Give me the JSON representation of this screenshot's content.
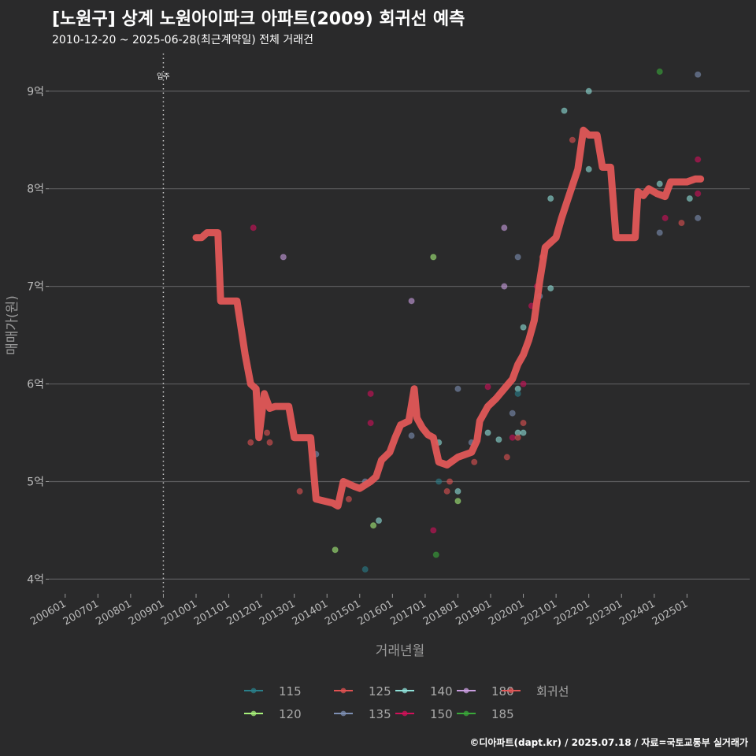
{
  "title": "[노원구] 상계 노원아이파크 아파트(2009) 회귀선 예측",
  "subtitle": "2010-12-20 ~ 2025-06-28(최근계약일) 전체 거래건",
  "caption": "©디아파트(dapt.kr) / 2025.07.18 / 자료=국토교통부 실거래가",
  "chart_data": {
    "type": "scatter",
    "xlabel": "거래년월",
    "ylabel": "매매가(원)",
    "xlim": [
      "2005-07",
      "2026-12"
    ],
    "ylim": [
      3.85,
      9.45
    ],
    "yticks": [
      4,
      5,
      6,
      7,
      8,
      9
    ],
    "ytick_labels": [
      "4억",
      "5억",
      "6억",
      "7억",
      "8억",
      "9억"
    ],
    "xtick_labels": [
      "200601",
      "200701",
      "200801",
      "200901",
      "201001",
      "201101",
      "201201",
      "201301",
      "201401",
      "201501",
      "201601",
      "201701",
      "201801",
      "201901",
      "202001",
      "202101",
      "202201",
      "202301",
      "202401",
      "202501"
    ],
    "annotation": {
      "label": "입주",
      "x": "2009-01"
    },
    "legend_position": "bottom",
    "colors": {
      "115": "#2a7f8a",
      "120": "#a7f07a",
      "125": "#e05252",
      "135": "#7d8fb3",
      "140": "#8fe0d8",
      "150": "#d1105a",
      "180": "#c99ee0",
      "185": "#3aa83a",
      "회귀선": "#e05757"
    },
    "legend": [
      "115",
      "120",
      "125",
      "135",
      "140",
      "150",
      "180",
      "185",
      "회귀선"
    ],
    "regression": [
      [
        "2010-01",
        7.5
      ],
      [
        "2010-03",
        7.5
      ],
      [
        "2010-05",
        7.55
      ],
      [
        "2010-09",
        7.55
      ],
      [
        "2010-10",
        6.85
      ],
      [
        "2011-04",
        6.85
      ],
      [
        "2011-07",
        6.3
      ],
      [
        "2011-09",
        6.0
      ],
      [
        "2011-11",
        5.95
      ],
      [
        "2011-12",
        5.45
      ],
      [
        "2012-02",
        5.9
      ],
      [
        "2012-04",
        5.75
      ],
      [
        "2012-06",
        5.77
      ],
      [
        "2012-11",
        5.77
      ],
      [
        "2013-01",
        5.45
      ],
      [
        "2013-07",
        5.45
      ],
      [
        "2013-09",
        4.82
      ],
      [
        "2014-03",
        4.78
      ],
      [
        "2014-05",
        4.75
      ],
      [
        "2014-07",
        5.0
      ],
      [
        "2014-11",
        4.95
      ],
      [
        "2015-01",
        4.93
      ],
      [
        "2015-05",
        5.0
      ],
      [
        "2015-07",
        5.05
      ],
      [
        "2015-09",
        5.22
      ],
      [
        "2015-12",
        5.3
      ],
      [
        "2016-02",
        5.45
      ],
      [
        "2016-04",
        5.58
      ],
      [
        "2016-07",
        5.62
      ],
      [
        "2016-09",
        5.95
      ],
      [
        "2016-10",
        5.65
      ],
      [
        "2016-12",
        5.55
      ],
      [
        "2017-02",
        5.48
      ],
      [
        "2017-04",
        5.45
      ],
      [
        "2017-06",
        5.2
      ],
      [
        "2017-09",
        5.17
      ],
      [
        "2018-01",
        5.25
      ],
      [
        "2018-06",
        5.3
      ],
      [
        "2018-08",
        5.42
      ],
      [
        "2018-09",
        5.62
      ],
      [
        "2018-12",
        5.77
      ],
      [
        "2019-03",
        5.85
      ],
      [
        "2019-06",
        5.95
      ],
      [
        "2019-09",
        6.05
      ],
      [
        "2019-11",
        6.2
      ],
      [
        "2020-01",
        6.3
      ],
      [
        "2020-03",
        6.45
      ],
      [
        "2020-05",
        6.65
      ],
      [
        "2020-07",
        7.05
      ],
      [
        "2020-09",
        7.4
      ],
      [
        "2020-11",
        7.45
      ],
      [
        "2021-01",
        7.5
      ],
      [
        "2021-03",
        7.7
      ],
      [
        "2021-06",
        7.95
      ],
      [
        "2021-09",
        8.2
      ],
      [
        "2021-11",
        8.6
      ],
      [
        "2022-01",
        8.55
      ],
      [
        "2022-04",
        8.55
      ],
      [
        "2022-06",
        8.22
      ],
      [
        "2022-09",
        8.22
      ],
      [
        "2022-11",
        7.5
      ],
      [
        "2023-03",
        7.5
      ],
      [
        "2023-06",
        7.5
      ],
      [
        "2023-07",
        7.97
      ],
      [
        "2023-09",
        7.93
      ],
      [
        "2023-11",
        8.0
      ],
      [
        "2024-02",
        7.95
      ],
      [
        "2024-05",
        7.92
      ],
      [
        "2024-07",
        8.07
      ],
      [
        "2025-01",
        8.07
      ],
      [
        "2025-04",
        8.1
      ],
      [
        "2025-06",
        8.1
      ]
    ],
    "points": [
      {
        "x": "2011-10",
        "y": 7.6,
        "s": "150"
      },
      {
        "x": "2011-09",
        "y": 5.4,
        "s": "125"
      },
      {
        "x": "2012-03",
        "y": 5.5,
        "s": "125"
      },
      {
        "x": "2012-04",
        "y": 5.4,
        "s": "125"
      },
      {
        "x": "2012-09",
        "y": 7.3,
        "s": "180"
      },
      {
        "x": "2013-03",
        "y": 4.9,
        "s": "125"
      },
      {
        "x": "2013-09",
        "y": 5.28,
        "s": "135"
      },
      {
        "x": "2014-04",
        "y": 4.3,
        "s": "120"
      },
      {
        "x": "2014-09",
        "y": 4.82,
        "s": "125"
      },
      {
        "x": "2015-03",
        "y": 5.0,
        "s": "135"
      },
      {
        "x": "2015-03",
        "y": 4.1,
        "s": "115"
      },
      {
        "x": "2015-05",
        "y": 5.9,
        "s": "150"
      },
      {
        "x": "2015-05",
        "y": 5.6,
        "s": "150"
      },
      {
        "x": "2015-06",
        "y": 4.55,
        "s": "120"
      },
      {
        "x": "2015-08",
        "y": 4.6,
        "s": "140"
      },
      {
        "x": "2016-08",
        "y": 6.85,
        "s": "180"
      },
      {
        "x": "2016-08",
        "y": 5.47,
        "s": "135"
      },
      {
        "x": "2017-04",
        "y": 7.3,
        "s": "120"
      },
      {
        "x": "2017-04",
        "y": 4.5,
        "s": "150"
      },
      {
        "x": "2017-05",
        "y": 4.25,
        "s": "185"
      },
      {
        "x": "2017-06",
        "y": 5.4,
        "s": "140"
      },
      {
        "x": "2017-06",
        "y": 5.0,
        "s": "115"
      },
      {
        "x": "2017-09",
        "y": 4.9,
        "s": "125"
      },
      {
        "x": "2017-10",
        "y": 5.0,
        "s": "125"
      },
      {
        "x": "2018-01",
        "y": 5.95,
        "s": "135"
      },
      {
        "x": "2018-01",
        "y": 4.9,
        "s": "140"
      },
      {
        "x": "2018-01",
        "y": 4.8,
        "s": "120"
      },
      {
        "x": "2018-06",
        "y": 5.4,
        "s": "135"
      },
      {
        "x": "2018-07",
        "y": 5.2,
        "s": "125"
      },
      {
        "x": "2018-12",
        "y": 5.97,
        "s": "150"
      },
      {
        "x": "2018-12",
        "y": 5.5,
        "s": "140"
      },
      {
        "x": "2019-04",
        "y": 5.43,
        "s": "140"
      },
      {
        "x": "2019-06",
        "y": 7.6,
        "s": "180"
      },
      {
        "x": "2019-06",
        "y": 7.0,
        "s": "180"
      },
      {
        "x": "2019-07",
        "y": 5.25,
        "s": "125"
      },
      {
        "x": "2019-09",
        "y": 5.7,
        "s": "135"
      },
      {
        "x": "2019-09",
        "y": 5.45,
        "s": "150"
      },
      {
        "x": "2019-11",
        "y": 7.3,
        "s": "135"
      },
      {
        "x": "2019-11",
        "y": 5.95,
        "s": "140"
      },
      {
        "x": "2019-11",
        "y": 5.9,
        "s": "115"
      },
      {
        "x": "2019-11",
        "y": 5.5,
        "s": "140"
      },
      {
        "x": "2019-11",
        "y": 5.45,
        "s": "125"
      },
      {
        "x": "2020-01",
        "y": 6.58,
        "s": "140"
      },
      {
        "x": "2020-01",
        "y": 6.0,
        "s": "150"
      },
      {
        "x": "2020-01",
        "y": 5.6,
        "s": "125"
      },
      {
        "x": "2020-01",
        "y": 5.5,
        "s": "140"
      },
      {
        "x": "2020-04",
        "y": 6.8,
        "s": "150"
      },
      {
        "x": "2020-06",
        "y": 7.0,
        "s": "150"
      },
      {
        "x": "2020-07",
        "y": 6.9,
        "s": "135"
      },
      {
        "x": "2020-08",
        "y": 7.3,
        "s": "125"
      },
      {
        "x": "2020-11",
        "y": 7.9,
        "s": "140"
      },
      {
        "x": "2020-11",
        "y": 6.98,
        "s": "140"
      },
      {
        "x": "2021-04",
        "y": 8.8,
        "s": "140"
      },
      {
        "x": "2021-07",
        "y": 8.5,
        "s": "125"
      },
      {
        "x": "2022-01",
        "y": 9.0,
        "s": "140"
      },
      {
        "x": "2022-01",
        "y": 8.2,
        "s": "140"
      },
      {
        "x": "2024-03",
        "y": 9.2,
        "s": "185"
      },
      {
        "x": "2024-03",
        "y": 8.05,
        "s": "140"
      },
      {
        "x": "2024-03",
        "y": 7.55,
        "s": "135"
      },
      {
        "x": "2024-05",
        "y": 7.7,
        "s": "150"
      },
      {
        "x": "2024-11",
        "y": 7.65,
        "s": "125"
      },
      {
        "x": "2025-02",
        "y": 7.9,
        "s": "140"
      },
      {
        "x": "2025-05",
        "y": 9.17,
        "s": "135"
      },
      {
        "x": "2025-05",
        "y": 8.3,
        "s": "150"
      },
      {
        "x": "2025-05",
        "y": 7.95,
        "s": "150"
      },
      {
        "x": "2025-05",
        "y": 7.7,
        "s": "135"
      }
    ]
  }
}
